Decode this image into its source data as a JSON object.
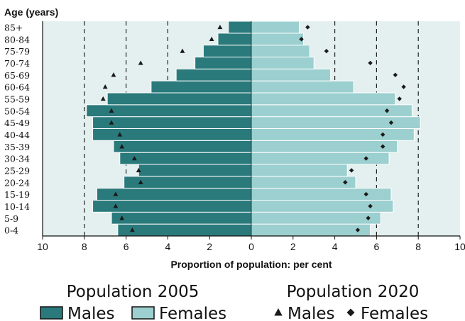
{
  "chart_data": {
    "type": "bar",
    "subtype": "population-pyramid",
    "age_axis_title": "Age (years)",
    "xlabel": "Proportion of population: per cent",
    "xlim": [
      -10,
      10
    ],
    "x_ticks": [
      -10,
      -8,
      -6,
      -4,
      -2,
      0,
      2,
      4,
      6,
      8,
      10
    ],
    "x_tick_labels": [
      "10",
      "8",
      "6",
      "4",
      "2",
      "0",
      "2",
      "4",
      "6",
      "8",
      "10"
    ],
    "grid": "dashed vertical lines at 2, 6 and 8 per cent",
    "categories": [
      "0-4",
      "5-9",
      "10-14",
      "15-19",
      "20-24",
      "25-29",
      "30-34",
      "35-39",
      "40-44",
      "45-49",
      "50-54",
      "55-59",
      "60-64",
      "65-69",
      "70-74",
      "75-79",
      "80-84",
      "85+"
    ],
    "series": [
      {
        "group": "Population 2005",
        "name": "Males",
        "marker": "bar",
        "color": "#2a7a7c",
        "values": [
          6.4,
          6.7,
          7.6,
          7.4,
          6.1,
          5.4,
          6.3,
          6.6,
          7.6,
          7.6,
          7.9,
          6.9,
          4.8,
          3.6,
          2.7,
          2.3,
          1.6,
          1.1
        ]
      },
      {
        "group": "Population 2005",
        "name": "Females",
        "marker": "bar",
        "color": "#9ccfcf",
        "values": [
          5.7,
          6.2,
          6.8,
          6.7,
          5.0,
          4.6,
          6.6,
          7.0,
          7.8,
          8.1,
          7.7,
          6.9,
          4.9,
          3.8,
          3.0,
          2.8,
          2.5,
          2.3
        ]
      },
      {
        "group": "Population 2020",
        "name": "Males",
        "marker": "triangle",
        "values": [
          5.7,
          6.2,
          6.5,
          6.5,
          5.3,
          5.4,
          5.6,
          6.2,
          6.3,
          6.7,
          6.7,
          7.1,
          7.0,
          6.6,
          5.3,
          3.3,
          1.9,
          1.5
        ]
      },
      {
        "group": "Population 2020",
        "name": "Females",
        "marker": "diamond",
        "values": [
          5.1,
          5.6,
          5.7,
          5.5,
          4.5,
          4.8,
          5.5,
          6.3,
          6.3,
          6.7,
          6.5,
          7.1,
          7.3,
          6.9,
          5.7,
          3.6,
          2.4,
          2.7
        ]
      }
    ],
    "legend": {
      "position": "bottom",
      "group_2005": "Population 2005",
      "group_2020": "Population 2020",
      "males": "Males",
      "females": "Females"
    },
    "colors": {
      "plot_background": "#e4f0ef",
      "male_bar": "#2a7a7c",
      "female_bar": "#9ccfcf",
      "marker": "#1a1a1a"
    }
  }
}
